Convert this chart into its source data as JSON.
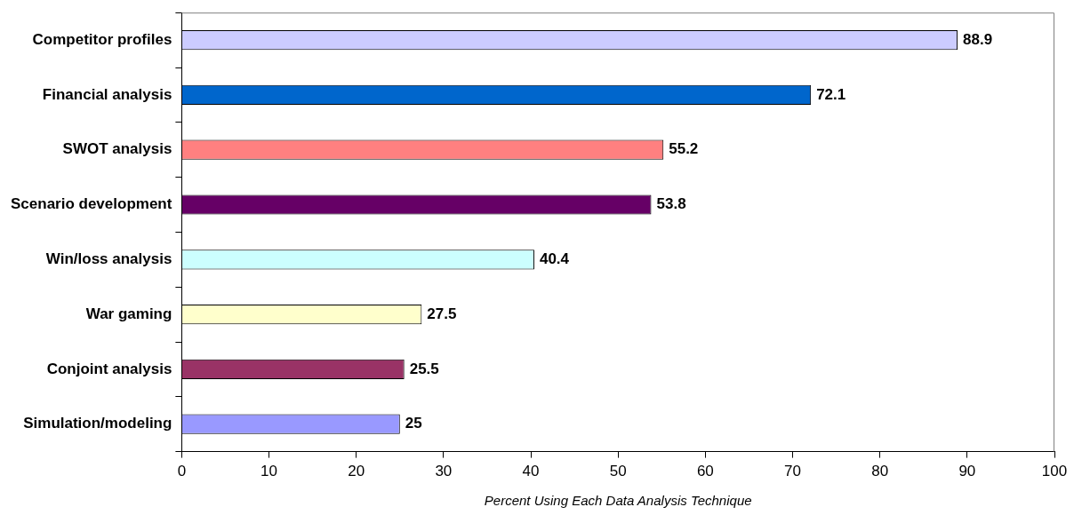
{
  "chart_data": {
    "type": "bar",
    "orientation": "horizontal",
    "xlabel": "Percent Using Each Data Analysis Technique",
    "categories": [
      "Competitor profiles",
      "Financial analysis",
      "SWOT analysis",
      "Scenario development",
      "Win/loss analysis",
      "War gaming",
      "Conjoint analysis",
      "Simulation/modeling"
    ],
    "values": [
      88.9,
      72.1,
      55.2,
      53.8,
      40.4,
      27.5,
      25.5,
      25
    ],
    "colors": [
      "#ccccff",
      "#0066cc",
      "#ff8080",
      "#660066",
      "#ccffff",
      "#ffffcc",
      "#993366",
      "#9999ff"
    ],
    "xlim": [
      0,
      100
    ],
    "xticks": [
      0,
      10,
      20,
      30,
      40,
      50,
      60,
      70,
      80,
      90,
      100
    ],
    "grid": false,
    "legend": false,
    "data_labels": true
  }
}
